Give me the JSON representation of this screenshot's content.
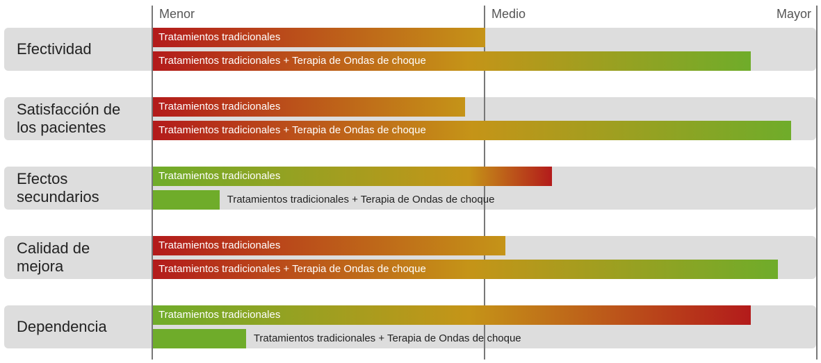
{
  "chart_data": {
    "type": "bar",
    "orientation": "horizontal",
    "scale": [
      "Menor",
      "Medio",
      "Mayor"
    ],
    "xlim": [
      0,
      100
    ],
    "categories": [
      "Efectividad",
      "Satisfacción de\nlos pacientes",
      "Efectos\nsecundarios",
      "Calidad de\nmejora",
      "Dependencia"
    ],
    "series": [
      {
        "name": "Tratamientos tradicionales",
        "values": [
          50,
          47,
          60,
          53,
          90
        ]
      },
      {
        "name": "Tratamientos tradicionales + Terapia de Ondas de choque",
        "values": [
          90,
          96,
          10,
          94,
          14
        ]
      }
    ],
    "colors": {
      "low": "#6fac2a",
      "mid": "#c59418",
      "high": "#b31b1b"
    },
    "color_meaning": [
      "favorable",
      "favorable",
      "unfavorable",
      "favorable",
      "unfavorable"
    ],
    "grid": true
  }
}
